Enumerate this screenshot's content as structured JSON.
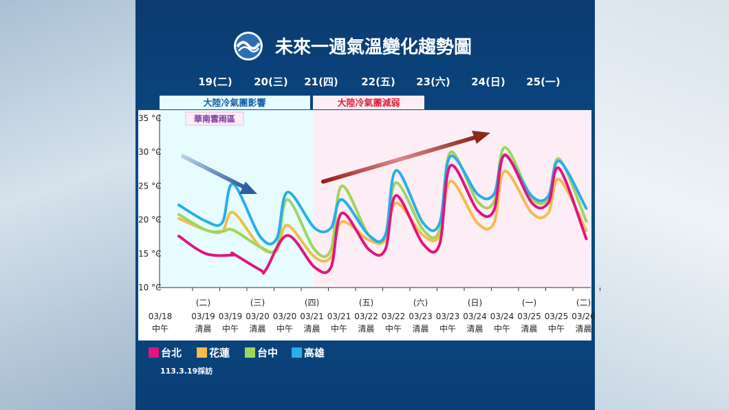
{
  "title": "未來一週氣溫變化趨勢圖",
  "days": [
    "19(二)",
    "20(三)",
    "21(四)",
    "22(五)",
    "23(六)",
    "24(日)",
    "25(一)"
  ],
  "periods": [
    {
      "label": "大陸冷氣團影響",
      "color": "#1a5fa8",
      "bg": "#e6fcff"
    },
    {
      "label": "大陸冷氣團減弱",
      "color": "#e0203a",
      "bg": "#fdeef5"
    }
  ],
  "annotation": "華南雲雨區",
  "footnote": "113.3.19採訪",
  "colors": {
    "taipei": "#e0157e",
    "hualien": "#f2bc4e",
    "taichung": "#9ed55c",
    "kaohsiung": "#29aee8"
  },
  "chart_data": {
    "type": "line",
    "ylim": [
      10,
      35
    ],
    "y_ticks": [
      "10 °C",
      "15 °C",
      "20 °C",
      "25 °C",
      "30 °C",
      "35 °C"
    ],
    "x_categories": [
      {
        "weekday": "",
        "date": "03/18",
        "time": "中午",
        "red": false
      },
      {
        "weekday": "(二)",
        "date": "03/19",
        "time": "清晨",
        "red": false
      },
      {
        "weekday": "",
        "date": "03/19",
        "time": "中午",
        "red": false
      },
      {
        "weekday": "(三)",
        "date": "03/20",
        "time": "清晨",
        "red": false
      },
      {
        "weekday": "",
        "date": "03/20",
        "time": "中午",
        "red": false
      },
      {
        "weekday": "(四)",
        "date": "03/21",
        "time": "清晨",
        "red": false
      },
      {
        "weekday": "",
        "date": "03/21",
        "time": "中午",
        "red": false
      },
      {
        "weekday": "(五)",
        "date": "03/22",
        "time": "清晨",
        "red": false
      },
      {
        "weekday": "",
        "date": "03/22",
        "time": "中午",
        "red": false
      },
      {
        "weekday": "(六)",
        "date": "03/23",
        "time": "清晨",
        "red": true
      },
      {
        "weekday": "",
        "date": "03/23",
        "time": "中午",
        "red": true
      },
      {
        "weekday": "(日)",
        "date": "03/24",
        "time": "清晨",
        "red": true
      },
      {
        "weekday": "",
        "date": "03/24",
        "time": "中午",
        "red": true
      },
      {
        "weekday": "(一)",
        "date": "03/25",
        "time": "清晨",
        "red": false
      },
      {
        "weekday": "",
        "date": "03/25",
        "time": "中午",
        "red": false
      },
      {
        "weekday": "(二)",
        "date": "03/26",
        "time": "清晨",
        "red": false
      }
    ],
    "series": [
      {
        "name": "台北",
        "color_key": "taipei",
        "values": [
          17.6,
          15.0,
          14.8,
          12.6,
          17.7,
          13.0,
          21.0,
          15.6,
          23.6,
          16.4,
          28.0,
          21.4,
          29.6,
          22.5,
          27.6,
          17.2
        ],
        "mins": [
          [
            2.0,
            15.0
          ],
          [
            3.2,
            12.6
          ],
          [
            5.6,
            13.0
          ],
          [
            7.6,
            15.6
          ],
          [
            9.6,
            16.4
          ],
          [
            11.6,
            21.4
          ],
          [
            13.6,
            22.5
          ]
        ]
      },
      {
        "name": "花蓮",
        "color_key": "hualien",
        "values": [
          20.2,
          18.5,
          21.1,
          16.0,
          19.2,
          14.5,
          19.7,
          17.0,
          22.5,
          17.7,
          25.7,
          19.5,
          27.2,
          21.0,
          26.0,
          18.4
        ],
        "mins": [
          [
            1.6,
            18.3
          ],
          [
            3.6,
            15.5
          ],
          [
            5.6,
            14.5
          ],
          [
            7.6,
            17.0
          ],
          [
            9.6,
            17.7
          ],
          [
            11.6,
            19.5
          ],
          [
            13.6,
            21.0
          ]
        ]
      },
      {
        "name": "台中",
        "color_key": "taichung",
        "values": [
          20.8,
          18.5,
          18.5,
          16.0,
          23.0,
          15.6,
          25.0,
          17.7,
          25.5,
          18.5,
          30.0,
          22.7,
          30.7,
          23.2,
          29.0,
          19.8
        ],
        "mins": [
          [
            1.6,
            18.3
          ],
          [
            3.6,
            15.8
          ],
          [
            5.6,
            15.6
          ],
          [
            7.6,
            17.7
          ],
          [
            9.6,
            18.5
          ],
          [
            11.6,
            22.7
          ],
          [
            13.6,
            23.2
          ]
        ]
      },
      {
        "name": "高雄",
        "color_key": "kaohsiung",
        "values": [
          22.2,
          19.8,
          25.3,
          17.5,
          24.1,
          18.8,
          23.0,
          17.7,
          27.3,
          19.5,
          29.4,
          23.8,
          29.5,
          23.5,
          28.7,
          21.7
        ],
        "mins": [
          [
            1.6,
            19.6
          ],
          [
            3.6,
            17.2
          ],
          [
            5.6,
            18.8
          ],
          [
            7.6,
            17.7
          ],
          [
            9.6,
            19.5
          ],
          [
            11.6,
            23.8
          ],
          [
            13.6,
            23.5
          ]
        ]
      }
    ]
  }
}
